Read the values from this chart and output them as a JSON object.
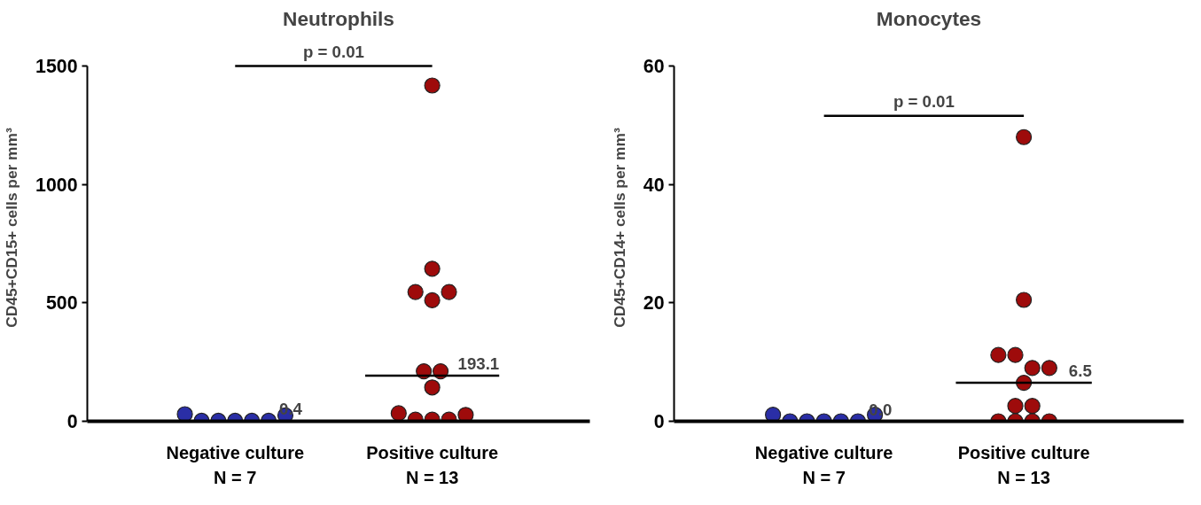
{
  "chart_data": [
    {
      "type": "scatter",
      "title": "Neutrophils",
      "ylabel": "CD45+CD15+ cells per mm³",
      "categories": [
        "Negative culture\nN = 7",
        "Positive culture\nN = 13"
      ],
      "ylim": [
        0,
        1500
      ],
      "yticks": [
        0,
        500,
        1000,
        1500
      ],
      "marker": "circle",
      "grid": false,
      "series": [
        {
          "color": "#2a2ea6",
          "x": [
            "Negative culture\nN = 7",
            "Negative culture\nN = 7",
            "Negative culture\nN = 7",
            "Negative culture\nN = 7",
            "Negative culture\nN = 7",
            "Negative culture\nN = 7",
            "Negative culture\nN = 7"
          ],
          "values": [
            30,
            2,
            2,
            2,
            2,
            2,
            25
          ]
        },
        {
          "color": "#9e0b0b",
          "x": [
            "Positive culture\nN = 13",
            "Positive culture\nN = 13",
            "Positive culture\nN = 13",
            "Positive culture\nN = 13",
            "Positive culture\nN = 13",
            "Positive culture\nN = 13",
            "Positive culture\nN = 13",
            "Positive culture\nN = 13",
            "Positive culture\nN = 13",
            "Positive culture\nN = 13",
            "Positive culture\nN = 13",
            "Positive culture\nN = 13",
            "Positive culture\nN = 13"
          ],
          "values": [
            1418,
            644,
            546,
            511,
            546,
            211,
            211,
            143,
            34,
            7,
            7,
            7,
            27
          ]
        }
      ],
      "annotations": [
        "p = 0.01",
        {
          "text": "0.4",
          "x": "Negative culture\nN = 7",
          "y": 0.4
        },
        {
          "text": "193.1",
          "x": "Positive culture\nN = 13",
          "y": 193.1
        }
      ]
    },
    {
      "type": "scatter",
      "title": "Monocytes",
      "ylabel": "CD45+CD14+ cells per mm³",
      "categories": [
        "Negative culture\nN = 7",
        "Positive culture\nN = 13"
      ],
      "ylim": [
        0,
        60
      ],
      "yticks": [
        0,
        20,
        40,
        60
      ],
      "marker": "circle",
      "grid": false,
      "series": [
        {
          "color": "#2a2ea6",
          "x": [
            "Negative culture\nN = 7",
            "Negative culture\nN = 7",
            "Negative culture\nN = 7",
            "Negative culture\nN = 7",
            "Negative culture\nN = 7",
            "Negative culture\nN = 7",
            "Negative culture\nN = 7"
          ],
          "values": [
            1.1,
            0,
            0,
            0,
            0,
            0,
            1.1
          ]
        },
        {
          "color": "#9e0b0b",
          "x": [
            "Positive culture\nN = 13",
            "Positive culture\nN = 13",
            "Positive culture\nN = 13",
            "Positive culture\nN = 13",
            "Positive culture\nN = 13",
            "Positive culture\nN = 13",
            "Positive culture\nN = 13",
            "Positive culture\nN = 13",
            "Positive culture\nN = 13",
            "Positive culture\nN = 13",
            "Positive culture\nN = 13",
            "Positive culture\nN = 13",
            "Positive culture\nN = 13"
          ],
          "values": [
            48,
            20.5,
            11.2,
            11.2,
            9,
            9,
            6.5,
            2.6,
            2.6,
            0,
            0,
            0,
            0
          ]
        }
      ],
      "annotations": [
        "p = 0.01",
        {
          "text": "0.0",
          "x": "Negative culture\nN = 7",
          "y": 0
        },
        {
          "text": "6.5",
          "x": "Positive culture\nN = 13",
          "y": 6.5
        }
      ]
    }
  ]
}
